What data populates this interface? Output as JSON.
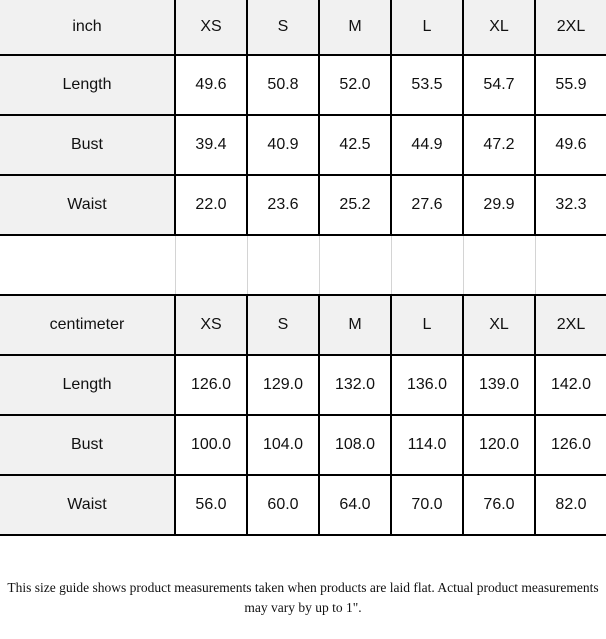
{
  "tables": [
    {
      "unit": "inch",
      "sizes": [
        "XS",
        "S",
        "M",
        "L",
        "XL",
        "2XL"
      ],
      "rows": [
        {
          "label": "Length",
          "values": [
            "49.6",
            "50.8",
            "52.0",
            "53.5",
            "54.7",
            "55.9"
          ]
        },
        {
          "label": "Bust",
          "values": [
            "39.4",
            "40.9",
            "42.5",
            "44.9",
            "47.2",
            "49.6"
          ]
        },
        {
          "label": "Waist",
          "values": [
            "22.0",
            "23.6",
            "25.2",
            "27.6",
            "29.9",
            "32.3"
          ]
        }
      ]
    },
    {
      "unit": "centimeter",
      "sizes": [
        "XS",
        "S",
        "M",
        "L",
        "XL",
        "2XL"
      ],
      "rows": [
        {
          "label": "Length",
          "values": [
            "126.0",
            "129.0",
            "132.0",
            "136.0",
            "139.0",
            "142.0"
          ]
        },
        {
          "label": "Bust",
          "values": [
            "100.0",
            "104.0",
            "108.0",
            "114.0",
            "120.0",
            "126.0"
          ]
        },
        {
          "label": "Waist",
          "values": [
            "56.0",
            "60.0",
            "64.0",
            "70.0",
            "76.0",
            "82.0"
          ]
        }
      ]
    }
  ],
  "note": "This size guide shows product measurements taken when products are laid flat. Actual product measurements may vary by up to 1\"."
}
